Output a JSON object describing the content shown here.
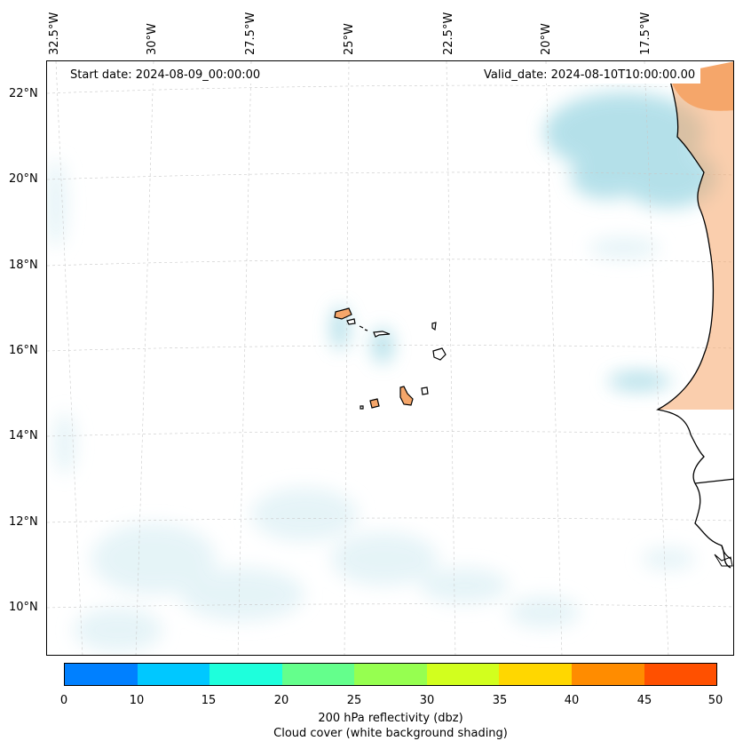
{
  "lon_labels": [
    "32.5°W",
    "30°W",
    "27.5°W",
    "25°W",
    "22.5°W",
    "20°W",
    "17.5°W"
  ],
  "lat_labels": [
    "22°N",
    "20°N",
    "18°N",
    "16°N",
    "14°N",
    "12°N",
    "10°N"
  ],
  "start_date": "Start date: 2024-08-09_00:00:00",
  "valid_date": "Valid_date: 2024-08-10T10:00:00.00",
  "colorbar": {
    "colors": [
      "#0080ff",
      "#00c8ff",
      "#1effdc",
      "#64ff8c",
      "#96ff50",
      "#d2ff1e",
      "#ffd700",
      "#ff8c00",
      "#ff5000"
    ],
    "ticks": [
      "0",
      "10",
      "15",
      "20",
      "25",
      "30",
      "35",
      "40",
      "45",
      "50"
    ],
    "label_line1": "200 hPa reflectivity (dbz)",
    "label_line2": "Cloud cover (white background shading)"
  },
  "colors": {
    "land": "#f5a66a",
    "cloud": "#a8dbe6",
    "cloud_light": "#e3f3f7",
    "coast": "#000000",
    "grid": "#c8c8c8"
  }
}
